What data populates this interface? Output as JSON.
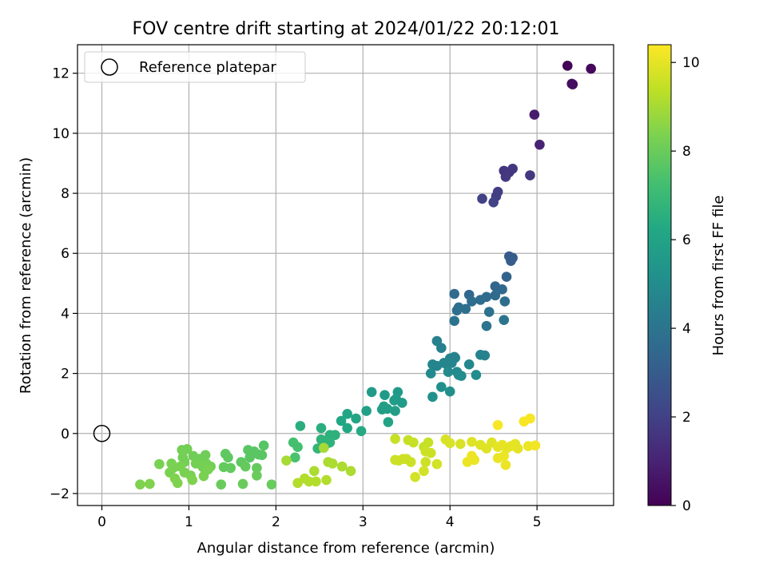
{
  "chart_data": {
    "type": "scatter",
    "title": "FOV centre drift starting at 2024/01/22 20:12:01",
    "xlabel": "Angular distance from reference (arcmin)",
    "ylabel": "Rotation from reference (arcmin)",
    "xlim": [
      -0.28,
      5.88
    ],
    "ylim": [
      -2.4,
      12.95
    ],
    "x_ticks": [
      0,
      1,
      2,
      3,
      4,
      5
    ],
    "y_ticks": [
      -2,
      0,
      2,
      4,
      6,
      8,
      10,
      12
    ],
    "grid": true,
    "legend": {
      "placement": "top-left",
      "entries": [
        "Reference platepar"
      ]
    },
    "reference_point": {
      "x": 0,
      "y": 0,
      "label": "Reference platepar"
    },
    "colorbar": {
      "label": "Hours from first FF file",
      "colormap": "viridis",
      "range": [
        0,
        10.4
      ],
      "ticks": [
        0,
        2,
        4,
        6,
        8,
        10
      ]
    },
    "points": [
      {
        "x": 5.35,
        "y": 12.25,
        "c": 0.1
      },
      {
        "x": 5.62,
        "y": 12.15,
        "c": 0.2
      },
      {
        "x": 5.4,
        "y": 11.65,
        "c": 0.3
      },
      {
        "x": 5.41,
        "y": 11.63,
        "c": 0.35
      },
      {
        "x": 4.97,
        "y": 10.62,
        "c": 0.8
      },
      {
        "x": 5.03,
        "y": 9.62,
        "c": 1.0
      },
      {
        "x": 4.72,
        "y": 8.82,
        "c": 1.6
      },
      {
        "x": 4.62,
        "y": 8.75,
        "c": 1.6
      },
      {
        "x": 4.68,
        "y": 8.7,
        "c": 1.65
      },
      {
        "x": 4.64,
        "y": 8.55,
        "c": 1.7
      },
      {
        "x": 4.92,
        "y": 8.6,
        "c": 1.7
      },
      {
        "x": 4.55,
        "y": 8.05,
        "c": 1.9
      },
      {
        "x": 4.53,
        "y": 7.9,
        "c": 1.9
      },
      {
        "x": 4.37,
        "y": 7.82,
        "c": 2.0
      },
      {
        "x": 4.5,
        "y": 7.7,
        "c": 2.0
      },
      {
        "x": 4.68,
        "y": 5.9,
        "c": 3.0
      },
      {
        "x": 4.72,
        "y": 5.85,
        "c": 3.0
      },
      {
        "x": 4.7,
        "y": 5.75,
        "c": 3.0
      },
      {
        "x": 4.65,
        "y": 5.22,
        "c": 3.3
      },
      {
        "x": 4.52,
        "y": 4.9,
        "c": 3.4
      },
      {
        "x": 4.6,
        "y": 4.8,
        "c": 3.5
      },
      {
        "x": 4.22,
        "y": 4.62,
        "c": 3.5
      },
      {
        "x": 4.05,
        "y": 4.65,
        "c": 3.6
      },
      {
        "x": 4.42,
        "y": 4.55,
        "c": 3.6
      },
      {
        "x": 4.52,
        "y": 4.6,
        "c": 3.6
      },
      {
        "x": 4.35,
        "y": 4.45,
        "c": 3.7
      },
      {
        "x": 4.25,
        "y": 4.4,
        "c": 3.7
      },
      {
        "x": 4.63,
        "y": 4.4,
        "c": 3.7
      },
      {
        "x": 4.1,
        "y": 4.2,
        "c": 3.8
      },
      {
        "x": 4.08,
        "y": 4.1,
        "c": 3.8
      },
      {
        "x": 4.18,
        "y": 4.15,
        "c": 3.8
      },
      {
        "x": 4.45,
        "y": 4.05,
        "c": 3.9
      },
      {
        "x": 4.05,
        "y": 3.75,
        "c": 4.0
      },
      {
        "x": 4.62,
        "y": 3.78,
        "c": 4.0
      },
      {
        "x": 4.42,
        "y": 3.58,
        "c": 4.0
      },
      {
        "x": 4.35,
        "y": 2.62,
        "c": 4.6
      },
      {
        "x": 4.4,
        "y": 2.6,
        "c": 4.6
      },
      {
        "x": 3.85,
        "y": 3.08,
        "c": 4.5
      },
      {
        "x": 3.9,
        "y": 2.85,
        "c": 4.5
      },
      {
        "x": 4.0,
        "y": 2.5,
        "c": 4.6
      },
      {
        "x": 4.06,
        "y": 2.52,
        "c": 4.6
      },
      {
        "x": 3.93,
        "y": 2.35,
        "c": 4.7
      },
      {
        "x": 3.8,
        "y": 2.3,
        "c": 4.7
      },
      {
        "x": 3.85,
        "y": 2.25,
        "c": 4.7
      },
      {
        "x": 3.97,
        "y": 2.28,
        "c": 4.7
      },
      {
        "x": 4.02,
        "y": 2.35,
        "c": 4.7
      },
      {
        "x": 4.22,
        "y": 2.3,
        "c": 4.8
      },
      {
        "x": 3.78,
        "y": 2.0,
        "c": 4.9
      },
      {
        "x": 3.98,
        "y": 2.05,
        "c": 4.9
      },
      {
        "x": 4.08,
        "y": 2.05,
        "c": 4.9
      },
      {
        "x": 4.1,
        "y": 1.95,
        "c": 4.9
      },
      {
        "x": 4.13,
        "y": 1.92,
        "c": 5.0
      },
      {
        "x": 4.3,
        "y": 1.95,
        "c": 5.0
      },
      {
        "x": 3.9,
        "y": 1.55,
        "c": 5.1
      },
      {
        "x": 4.0,
        "y": 1.4,
        "c": 5.1
      },
      {
        "x": 3.8,
        "y": 1.22,
        "c": 5.2
      },
      {
        "x": 4.05,
        "y": 2.55,
        "c": 4.6
      },
      {
        "x": 3.1,
        "y": 1.38,
        "c": 5.6
      },
      {
        "x": 3.4,
        "y": 1.38,
        "c": 5.6
      },
      {
        "x": 3.25,
        "y": 1.28,
        "c": 5.6
      },
      {
        "x": 3.38,
        "y": 1.15,
        "c": 5.7
      },
      {
        "x": 3.36,
        "y": 1.1,
        "c": 5.7
      },
      {
        "x": 3.45,
        "y": 1.02,
        "c": 5.7
      },
      {
        "x": 3.24,
        "y": 0.9,
        "c": 5.8
      },
      {
        "x": 3.28,
        "y": 0.82,
        "c": 5.8
      },
      {
        "x": 3.22,
        "y": 0.8,
        "c": 5.8
      },
      {
        "x": 3.37,
        "y": 0.75,
        "c": 5.8
      },
      {
        "x": 3.04,
        "y": 0.75,
        "c": 5.9
      },
      {
        "x": 3.29,
        "y": 0.38,
        "c": 6.0
      },
      {
        "x": 2.82,
        "y": 0.65,
        "c": 6.1
      },
      {
        "x": 2.92,
        "y": 0.5,
        "c": 6.1
      },
      {
        "x": 2.75,
        "y": 0.42,
        "c": 6.2
      },
      {
        "x": 2.82,
        "y": 0.18,
        "c": 6.2
      },
      {
        "x": 2.98,
        "y": 0.08,
        "c": 6.3
      },
      {
        "x": 2.28,
        "y": 0.25,
        "c": 6.5
      },
      {
        "x": 2.52,
        "y": 0.18,
        "c": 6.5
      },
      {
        "x": 2.62,
        "y": -0.05,
        "c": 6.6
      },
      {
        "x": 2.68,
        "y": -0.05,
        "c": 6.6
      },
      {
        "x": 2.52,
        "y": -0.2,
        "c": 6.7
      },
      {
        "x": 2.57,
        "y": -0.25,
        "c": 6.7
      },
      {
        "x": 2.62,
        "y": -0.3,
        "c": 6.7
      },
      {
        "x": 2.58,
        "y": -0.35,
        "c": 6.7
      },
      {
        "x": 2.48,
        "y": -0.5,
        "c": 6.8
      },
      {
        "x": 2.2,
        "y": -0.3,
        "c": 7.3
      },
      {
        "x": 2.25,
        "y": -0.45,
        "c": 7.3
      },
      {
        "x": 2.22,
        "y": -0.8,
        "c": 7.4
      },
      {
        "x": 1.86,
        "y": -0.4,
        "c": 7.6
      },
      {
        "x": 1.68,
        "y": -0.55,
        "c": 7.7
      },
      {
        "x": 1.75,
        "y": -0.6,
        "c": 7.7
      },
      {
        "x": 1.8,
        "y": -0.7,
        "c": 7.7
      },
      {
        "x": 1.7,
        "y": -0.8,
        "c": 7.7
      },
      {
        "x": 1.84,
        "y": -0.72,
        "c": 7.7
      },
      {
        "x": 1.42,
        "y": -0.68,
        "c": 7.8
      },
      {
        "x": 1.45,
        "y": -0.8,
        "c": 7.8
      },
      {
        "x": 1.6,
        "y": -0.95,
        "c": 7.8
      },
      {
        "x": 1.78,
        "y": -1.15,
        "c": 7.9
      },
      {
        "x": 1.65,
        "y": -1.1,
        "c": 7.9
      },
      {
        "x": 1.4,
        "y": -1.12,
        "c": 7.9
      },
      {
        "x": 1.48,
        "y": -1.15,
        "c": 7.9
      },
      {
        "x": 1.78,
        "y": -1.4,
        "c": 8.0
      },
      {
        "x": 1.62,
        "y": -1.68,
        "c": 8.0
      },
      {
        "x": 1.95,
        "y": -1.7,
        "c": 8.0
      },
      {
        "x": 1.37,
        "y": -1.7,
        "c": 8.0
      },
      {
        "x": 1.19,
        "y": -0.72,
        "c": 8.1
      },
      {
        "x": 1.05,
        "y": -0.75,
        "c": 8.1
      },
      {
        "x": 1.12,
        "y": -0.85,
        "c": 8.1
      },
      {
        "x": 0.98,
        "y": -0.52,
        "c": 8.2
      },
      {
        "x": 0.92,
        "y": -0.55,
        "c": 8.2
      },
      {
        "x": 0.93,
        "y": -0.8,
        "c": 8.2
      },
      {
        "x": 0.95,
        "y": -0.95,
        "c": 8.2
      },
      {
        "x": 1.08,
        "y": -1.0,
        "c": 8.2
      },
      {
        "x": 1.2,
        "y": -1.0,
        "c": 8.2
      },
      {
        "x": 1.25,
        "y": -1.1,
        "c": 8.2
      },
      {
        "x": 1.16,
        "y": -1.12,
        "c": 8.2
      },
      {
        "x": 0.8,
        "y": -1.0,
        "c": 8.3
      },
      {
        "x": 0.82,
        "y": -1.15,
        "c": 8.3
      },
      {
        "x": 0.9,
        "y": -1.1,
        "c": 8.3
      },
      {
        "x": 0.66,
        "y": -1.02,
        "c": 8.3
      },
      {
        "x": 0.78,
        "y": -1.3,
        "c": 8.3
      },
      {
        "x": 0.95,
        "y": -1.3,
        "c": 8.3
      },
      {
        "x": 1.02,
        "y": -1.4,
        "c": 8.3
      },
      {
        "x": 1.17,
        "y": -1.42,
        "c": 8.3
      },
      {
        "x": 1.22,
        "y": -1.2,
        "c": 8.3
      },
      {
        "x": 0.84,
        "y": -1.5,
        "c": 8.4
      },
      {
        "x": 0.87,
        "y": -1.65,
        "c": 8.4
      },
      {
        "x": 1.04,
        "y": -1.55,
        "c": 8.4
      },
      {
        "x": 0.44,
        "y": -1.7,
        "c": 8.4
      },
      {
        "x": 0.55,
        "y": -1.68,
        "c": 8.4
      },
      {
        "x": 2.12,
        "y": -0.9,
        "c": 9.0
      },
      {
        "x": 2.55,
        "y": -0.48,
        "c": 9.0
      },
      {
        "x": 2.6,
        "y": -0.95,
        "c": 9.1
      },
      {
        "x": 2.65,
        "y": -1.0,
        "c": 9.1
      },
      {
        "x": 2.76,
        "y": -1.1,
        "c": 9.1
      },
      {
        "x": 2.44,
        "y": -1.25,
        "c": 9.1
      },
      {
        "x": 2.86,
        "y": -1.25,
        "c": 9.1
      },
      {
        "x": 2.33,
        "y": -1.5,
        "c": 9.2
      },
      {
        "x": 2.38,
        "y": -1.6,
        "c": 9.2
      },
      {
        "x": 2.46,
        "y": -1.6,
        "c": 9.2
      },
      {
        "x": 2.58,
        "y": -1.55,
        "c": 9.2
      },
      {
        "x": 2.25,
        "y": -1.65,
        "c": 9.2
      },
      {
        "x": 3.37,
        "y": -0.18,
        "c": 9.5
      },
      {
        "x": 3.52,
        "y": -0.22,
        "c": 9.5
      },
      {
        "x": 3.58,
        "y": -0.3,
        "c": 9.5
      },
      {
        "x": 3.7,
        "y": -0.45,
        "c": 9.5
      },
      {
        "x": 3.75,
        "y": -0.3,
        "c": 9.5
      },
      {
        "x": 3.72,
        "y": -0.6,
        "c": 9.6
      },
      {
        "x": 3.78,
        "y": -0.65,
        "c": 9.6
      },
      {
        "x": 3.37,
        "y": -0.88,
        "c": 9.6
      },
      {
        "x": 3.41,
        "y": -0.9,
        "c": 9.6
      },
      {
        "x": 3.46,
        "y": -0.85,
        "c": 9.6
      },
      {
        "x": 3.5,
        "y": -0.85,
        "c": 9.6
      },
      {
        "x": 3.55,
        "y": -0.95,
        "c": 9.6
      },
      {
        "x": 3.72,
        "y": -0.95,
        "c": 9.6
      },
      {
        "x": 3.85,
        "y": -1.02,
        "c": 9.7
      },
      {
        "x": 3.6,
        "y": -1.45,
        "c": 9.7
      },
      {
        "x": 3.7,
        "y": -1.25,
        "c": 9.7
      },
      {
        "x": 3.95,
        "y": -0.2,
        "c": 9.8
      },
      {
        "x": 4.0,
        "y": -0.32,
        "c": 9.8
      },
      {
        "x": 4.12,
        "y": -0.35,
        "c": 9.8
      },
      {
        "x": 4.25,
        "y": -0.28,
        "c": 9.9
      },
      {
        "x": 4.35,
        "y": -0.38,
        "c": 9.9
      },
      {
        "x": 4.42,
        "y": -0.5,
        "c": 9.9
      },
      {
        "x": 4.48,
        "y": -0.3,
        "c": 9.9
      },
      {
        "x": 4.55,
        "y": -0.45,
        "c": 10.0
      },
      {
        "x": 4.6,
        "y": -0.38,
        "c": 10.0
      },
      {
        "x": 4.65,
        "y": -0.5,
        "c": 10.0
      },
      {
        "x": 4.7,
        "y": -0.42,
        "c": 10.0
      },
      {
        "x": 4.75,
        "y": -0.35,
        "c": 10.0
      },
      {
        "x": 4.78,
        "y": -0.5,
        "c": 10.0
      },
      {
        "x": 4.9,
        "y": -0.42,
        "c": 10.1
      },
      {
        "x": 4.55,
        "y": -0.82,
        "c": 10.1
      },
      {
        "x": 4.62,
        "y": -0.75,
        "c": 10.1
      },
      {
        "x": 4.2,
        "y": -0.95,
        "c": 10.1
      },
      {
        "x": 4.25,
        "y": -0.75,
        "c": 10.1
      },
      {
        "x": 4.64,
        "y": -1.05,
        "c": 10.1
      },
      {
        "x": 4.28,
        "y": -0.88,
        "c": 10.1
      },
      {
        "x": 4.98,
        "y": -0.4,
        "c": 10.2
      },
      {
        "x": 4.55,
        "y": 0.28,
        "c": 10.3
      },
      {
        "x": 4.85,
        "y": 0.4,
        "c": 10.3
      },
      {
        "x": 4.92,
        "y": 0.5,
        "c": 10.3
      }
    ]
  }
}
